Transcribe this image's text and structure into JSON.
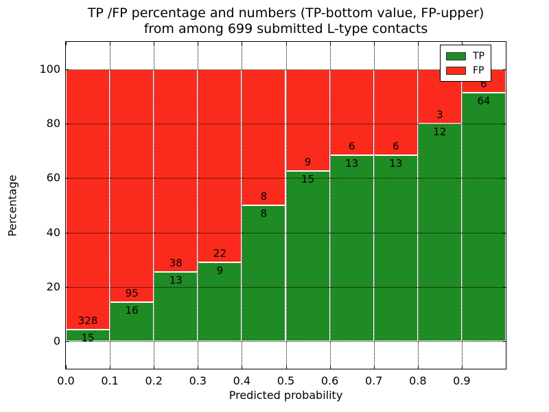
{
  "figure": {
    "title_line1": "TP /FP percentage and numbers (TP-bottom value, FP-upper)",
    "title_line2": "from among 699 submitted L-type contacts"
  },
  "chart_data": {
    "type": "bar",
    "stacked": true,
    "orientation": "vertical",
    "total_contacts": 699,
    "categories": [
      "0.0",
      "0.1",
      "0.2",
      "0.3",
      "0.4",
      "0.5",
      "0.6",
      "0.7",
      "0.8",
      "0.9"
    ],
    "bin_width": 0.1,
    "series": [
      {
        "name": "TP",
        "color": "#1f8b24",
        "counts": [
          15,
          16,
          13,
          9,
          8,
          15,
          13,
          13,
          12,
          64
        ],
        "pct": [
          4.4,
          14.4,
          25.5,
          29.0,
          50.0,
          62.5,
          68.4,
          68.4,
          80.0,
          91.4
        ]
      },
      {
        "name": "FP",
        "color": "#fa2a1c",
        "counts": [
          328,
          95,
          38,
          22,
          8,
          9,
          6,
          6,
          3,
          6
        ],
        "pct": [
          95.6,
          85.6,
          74.5,
          71.0,
          50.0,
          37.5,
          31.6,
          31.6,
          20.0,
          8.6
        ]
      }
    ],
    "xlabel": "Predicted probability",
    "ylabel": "Percentage",
    "xticks": [
      "0.0",
      "0.1",
      "0.2",
      "0.3",
      "0.4",
      "0.5",
      "0.6",
      "0.7",
      "0.8",
      "0.9"
    ],
    "yticks": [
      0,
      20,
      40,
      60,
      80,
      100
    ],
    "xlim": [
      0.0,
      1.0
    ],
    "ylim": [
      -10,
      110
    ],
    "grid": "dotted",
    "bar_edge_color": "#ffffff",
    "legend": {
      "position": "upper right",
      "entries": [
        {
          "label": "TP",
          "color": "#1f8b24"
        },
        {
          "label": "FP",
          "color": "#fa2a1c"
        }
      ]
    }
  }
}
